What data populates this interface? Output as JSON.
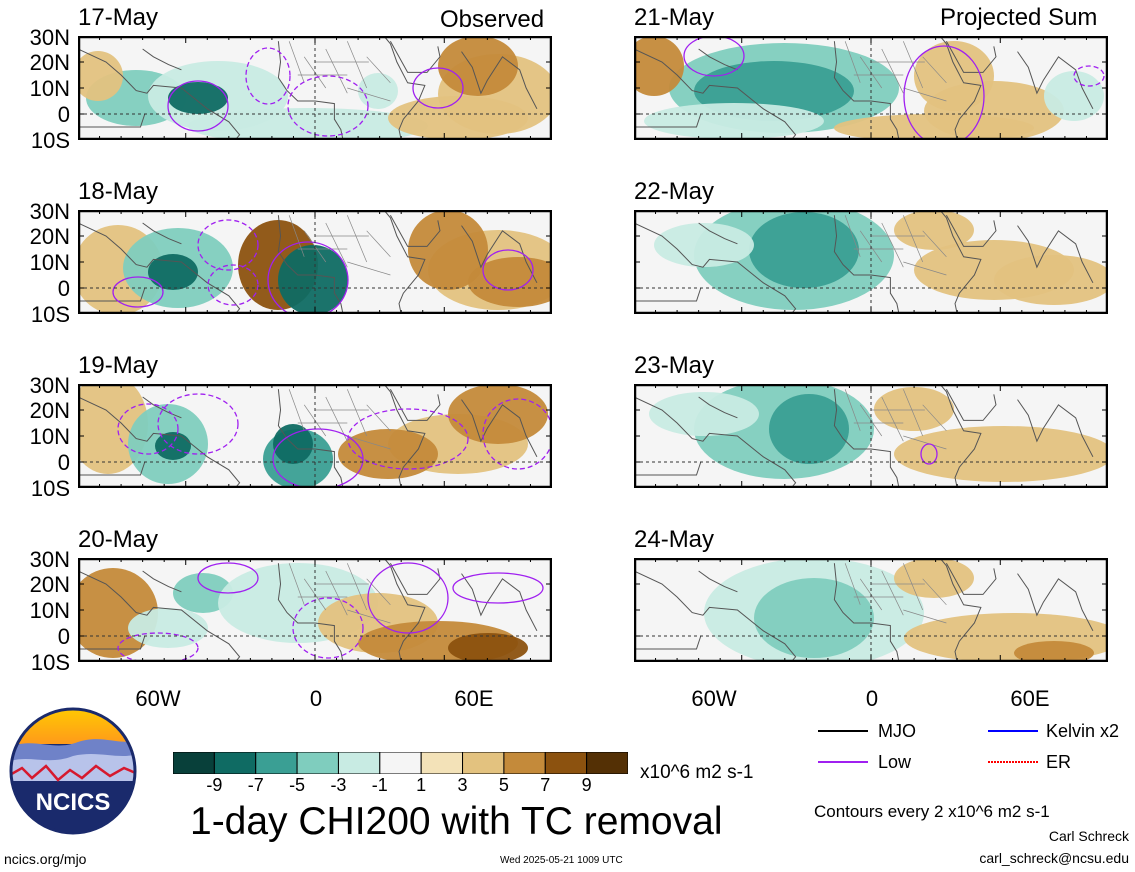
{
  "headers": {
    "left": "Observed",
    "right": "Projected Sum"
  },
  "panels": [
    {
      "id": "p17",
      "date": "17-May",
      "col": 0,
      "row": 0
    },
    {
      "id": "p18",
      "date": "18-May",
      "col": 0,
      "row": 1
    },
    {
      "id": "p19",
      "date": "19-May",
      "col": 0,
      "row": 2
    },
    {
      "id": "p20",
      "date": "20-May",
      "col": 0,
      "row": 3
    },
    {
      "id": "p21",
      "date": "21-May",
      "col": 1,
      "row": 0
    },
    {
      "id": "p22",
      "date": "22-May",
      "col": 1,
      "row": 1
    },
    {
      "id": "p23",
      "date": "23-May",
      "col": 1,
      "row": 2
    },
    {
      "id": "p24",
      "date": "24-May",
      "col": 1,
      "row": 3
    }
  ],
  "lat_labels": [
    "30N",
    "20N",
    "10N",
    "0",
    "10S"
  ],
  "lon_labels": [
    "60W",
    "0",
    "60E"
  ],
  "colorbar": {
    "colors": [
      "#08403a",
      "#0f6b63",
      "#3a9f94",
      "#7fcdbe",
      "#c8ebe3",
      "#f5f5f5",
      "#f3e2b8",
      "#e3c27f",
      "#c48a3a",
      "#8c520f",
      "#543005"
    ],
    "ticks": [
      "-9",
      "-7",
      "-5",
      "-3",
      "-1",
      "1",
      "3",
      "5",
      "7",
      "9"
    ],
    "units": "x10^6 m2 s-1"
  },
  "title": "1-day CHI200 with TC removal",
  "legend": {
    "items": [
      {
        "label": "MJO",
        "color": "#000000"
      },
      {
        "label": "Kelvin x2",
        "color": "#0000ff"
      },
      {
        "label": "Low",
        "color": "#a020f0"
      },
      {
        "label": "ER",
        "color": "#ff0000"
      }
    ],
    "note": "Contours every 2 x10^6 m2 s-1"
  },
  "credits": {
    "author": "Carl Schreck",
    "email": "carl_schreck@ncsu.edu",
    "url": "ncics.org/mjo",
    "timestamp": "Wed 2025-05-21 1009 UTC",
    "logo_text": "NCICS"
  }
}
